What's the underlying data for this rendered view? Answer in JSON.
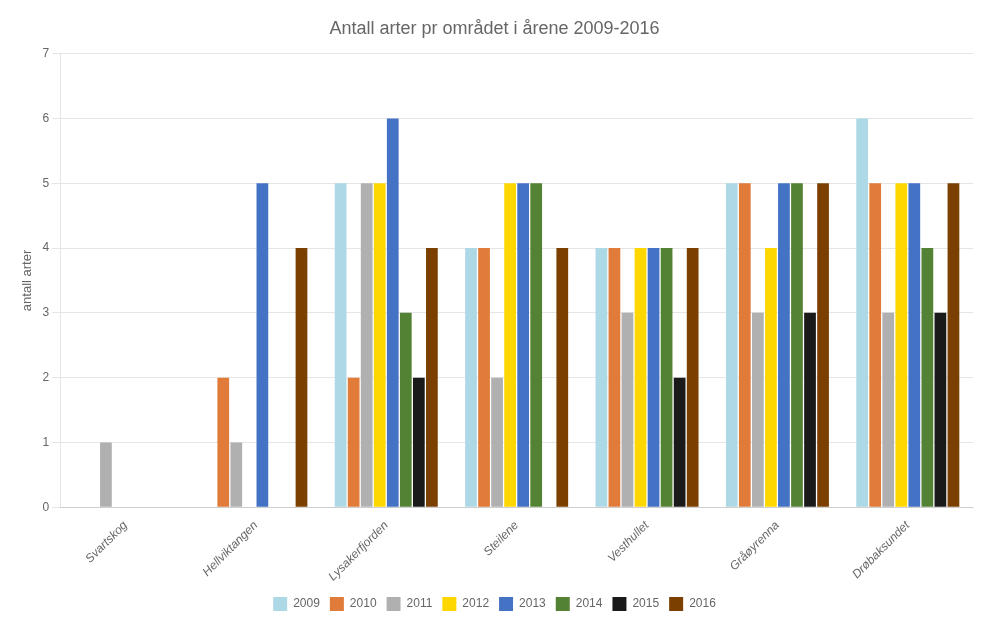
{
  "chart_data": {
    "type": "bar",
    "title": "Antall arter pr området i årene 2009-2016",
    "ylabel": "antall arter",
    "categories": [
      "Svartskog",
      "Hellviktangen",
      "Lysakerfjorden",
      "Steilene",
      "Vesthullet",
      "Gråøyrenna",
      "Drøbaksundet"
    ],
    "series": [
      {
        "name": "2009",
        "color": "#add8e6",
        "values": [
          0,
          0,
          5,
          4,
          4,
          5,
          6
        ]
      },
      {
        "name": "2010",
        "color": "#e07b39",
        "values": [
          0,
          2,
          2,
          4,
          4,
          5,
          5
        ]
      },
      {
        "name": "2011",
        "color": "#b0b0b0",
        "values": [
          1,
          1,
          5,
          2,
          3,
          3,
          3
        ]
      },
      {
        "name": "2012",
        "color": "#ffd700",
        "values": [
          0,
          0,
          5,
          5,
          4,
          4,
          5
        ]
      },
      {
        "name": "2013",
        "color": "#4472c4",
        "values": [
          0,
          5,
          6,
          5,
          4,
          5,
          5
        ]
      },
      {
        "name": "2014",
        "color": "#548235",
        "values": [
          0,
          0,
          3,
          5,
          4,
          5,
          4
        ]
      },
      {
        "name": "2015",
        "color": "#1a1a1a",
        "values": [
          0,
          0,
          2,
          0,
          2,
          3,
          3
        ]
      },
      {
        "name": "2016",
        "color": "#7b3f00",
        "values": [
          0,
          4,
          4,
          4,
          4,
          5,
          5
        ]
      }
    ],
    "ylim": [
      0,
      7
    ],
    "yticks": [
      0,
      1,
      2,
      3,
      4,
      5,
      6,
      7
    ],
    "grid": true,
    "legend": "bottom"
  }
}
